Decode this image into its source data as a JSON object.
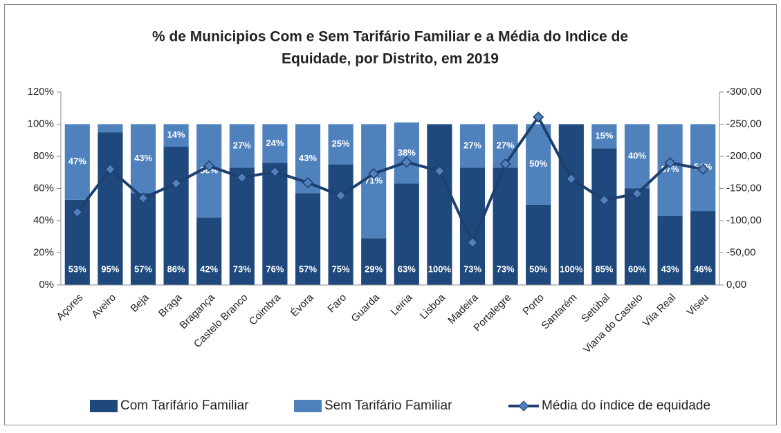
{
  "chart_data": {
    "type": "bar",
    "title": [
      "% de Municipios Com e Sem Tarifário Familiar e a Média do Indice de",
      "Equidade, por Distrito, em 2019"
    ],
    "categories": [
      "Açores",
      "Aveiro",
      "Beja",
      "Braga",
      "Bragança",
      "Castelo Branco",
      "Coimbra",
      "Évora",
      "Faro",
      "Guarda",
      "Leiria",
      "Lisboa",
      "Madeira",
      "Portalegre",
      "Porto",
      "Santarém",
      "Setúbal",
      "Viana do Castelo",
      "Vila Real",
      "Viseu"
    ],
    "series": [
      {
        "name": "Com Tarifário Familiar",
        "color": "#1f497d",
        "values": [
          53,
          95,
          57,
          86,
          42,
          73,
          76,
          57,
          75,
          29,
          63,
          100,
          73,
          73,
          50,
          100,
          85,
          60,
          43,
          46
        ],
        "value_labels": [
          "53%",
          "95%",
          "57%",
          "86%",
          "42%",
          "73%",
          "76%",
          "57%",
          "75%",
          "29%",
          "63%",
          "100%",
          "73%",
          "73%",
          "50%",
          "100%",
          "85%",
          "60%",
          "43%",
          "46%"
        ]
      },
      {
        "name": "Sem Tarifário Familiar",
        "color": "#4f81bd",
        "values": [
          47,
          5,
          43,
          14,
          58,
          27,
          24,
          43,
          25,
          71,
          38,
          0,
          27,
          27,
          50,
          0,
          15,
          40,
          57,
          54
        ],
        "value_labels": [
          "47%",
          null,
          "43%",
          "14%",
          "58%",
          "27%",
          "24%",
          "43%",
          "25%",
          "71%",
          "38%",
          null,
          "27%",
          "27%",
          "50%",
          null,
          "15%",
          "40%",
          "57%",
          "54%"
        ]
      },
      {
        "name": "Média do índice de equidade",
        "color": "#1f3f6e",
        "marker_color": "#4f81bd",
        "axis": "y2",
        "type": "line",
        "values": [
          -113,
          -180,
          -135,
          -158,
          -185,
          -167,
          -176,
          -159,
          -139,
          -173,
          -191,
          -177,
          -66,
          -188,
          -261,
          -165,
          -132,
          -142,
          -190,
          -180
        ]
      }
    ],
    "stacked": true,
    "ylim": [
      0,
      120
    ],
    "yticks": [
      {
        "value": 0,
        "label": "0%"
      },
      {
        "value": 20,
        "label": "20%"
      },
      {
        "value": 40,
        "label": "40%"
      },
      {
        "value": 60,
        "label": "60%"
      },
      {
        "value": 80,
        "label": "80%"
      },
      {
        "value": 100,
        "label": "100%"
      },
      {
        "value": 120,
        "label": "120%"
      }
    ],
    "y2lim": [
      0,
      -300
    ],
    "y2ticks": [
      {
        "value": 0,
        "label": "0,00"
      },
      {
        "value": -50,
        "label": "-50,00"
      },
      {
        "value": -100,
        "label": "-100,00"
      },
      {
        "value": -150,
        "label": "-150,00"
      },
      {
        "value": -200,
        "label": "-200,00"
      },
      {
        "value": -250,
        "label": "-250,00"
      },
      {
        "value": -300,
        "label": "-300,00"
      }
    ],
    "legend": "bottom"
  }
}
